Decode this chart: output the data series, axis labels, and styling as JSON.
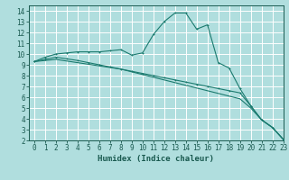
{
  "background_color": "#b0dede",
  "grid_color": "#ffffff",
  "line_color": "#1a7a6e",
  "xlabel": "Humidex (Indice chaleur)",
  "xlim": [
    -0.5,
    23
  ],
  "ylim": [
    2,
    14.5
  ],
  "xticks": [
    0,
    1,
    2,
    3,
    4,
    5,
    6,
    7,
    8,
    9,
    10,
    11,
    12,
    13,
    14,
    15,
    16,
    17,
    18,
    19,
    20,
    21,
    22,
    23
  ],
  "yticks": [
    2,
    3,
    4,
    5,
    6,
    7,
    8,
    9,
    10,
    11,
    12,
    13,
    14
  ],
  "line1_x": [
    0,
    1,
    2,
    3,
    4,
    5,
    6,
    7,
    8,
    9,
    10,
    11,
    12,
    13,
    14,
    15,
    16,
    17,
    18,
    19,
    20,
    21,
    22,
    23
  ],
  "line1_y": [
    9.3,
    9.7,
    10.0,
    10.1,
    10.2,
    10.2,
    10.2,
    10.3,
    10.4,
    9.9,
    10.1,
    11.8,
    13.0,
    13.8,
    13.8,
    12.3,
    12.7,
    9.2,
    8.7,
    6.8,
    5.2,
    3.9,
    3.2,
    2.1
  ],
  "line2_x": [
    0,
    1,
    2,
    3,
    4,
    5,
    6,
    7,
    8,
    9,
    10,
    11,
    12,
    13,
    14,
    15,
    16,
    17,
    18,
    19,
    20,
    21,
    22,
    23
  ],
  "line2_y": [
    9.3,
    9.5,
    9.7,
    9.55,
    9.4,
    9.2,
    9.0,
    8.8,
    8.6,
    8.4,
    8.2,
    8.0,
    7.8,
    7.6,
    7.4,
    7.2,
    7.0,
    6.8,
    6.6,
    6.4,
    5.2,
    3.9,
    3.2,
    2.1
  ],
  "line3_x": [
    0,
    1,
    2,
    3,
    4,
    5,
    6,
    7,
    8,
    9,
    10,
    11,
    12,
    13,
    14,
    15,
    16,
    17,
    18,
    19,
    20,
    21,
    22,
    23
  ],
  "line3_y": [
    9.3,
    9.4,
    9.5,
    9.35,
    9.2,
    9.05,
    8.9,
    8.75,
    8.6,
    8.35,
    8.1,
    7.85,
    7.6,
    7.35,
    7.1,
    6.85,
    6.6,
    6.35,
    6.1,
    5.85,
    5.0,
    3.9,
    3.2,
    2.1
  ],
  "tick_fontsize": 5.5,
  "xlabel_fontsize": 6.5,
  "line_width": 0.8,
  "marker_size": 2.0
}
